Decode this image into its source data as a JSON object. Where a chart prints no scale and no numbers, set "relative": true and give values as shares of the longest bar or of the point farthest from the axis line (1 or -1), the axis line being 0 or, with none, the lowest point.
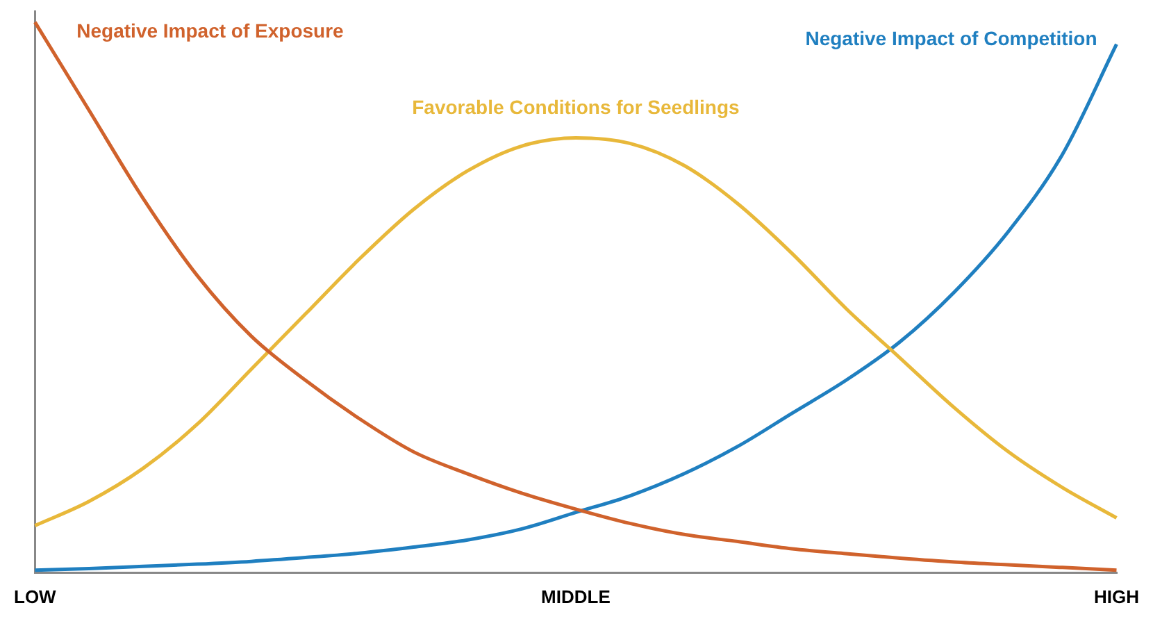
{
  "chart_data": {
    "type": "line",
    "relative": true,
    "legend": false,
    "grid": false,
    "marker": "none",
    "line_style": "solid",
    "categories": [
      "LOW",
      null,
      null,
      null,
      null,
      null,
      null,
      null,
      null,
      null,
      "MIDDLE",
      null,
      null,
      null,
      null,
      null,
      null,
      null,
      null,
      null,
      "HIGH"
    ],
    "series": [
      {
        "name": "Negative Impact of Exposure",
        "color": "#d0622c",
        "values": [
          1.0,
          0.84,
          0.68,
          0.54,
          0.43,
          0.35,
          0.28,
          0.22,
          0.18,
          0.145,
          0.116,
          0.09,
          0.07,
          0.057,
          0.044,
          0.035,
          0.027,
          0.02,
          0.015,
          0.01,
          0.005
        ]
      },
      {
        "name": "Favorable Conditions for Seedlings",
        "color": "#e8b83a",
        "values": [
          0.086,
          0.13,
          0.19,
          0.27,
          0.37,
          0.47,
          0.57,
          0.66,
          0.73,
          0.775,
          0.79,
          0.78,
          0.74,
          0.67,
          0.58,
          0.48,
          0.39,
          0.3,
          0.22,
          0.155,
          0.1
        ]
      },
      {
        "name": "Negative Impact of Competition",
        "color": "#1f7fc0",
        "values": [
          0.005,
          0.008,
          0.012,
          0.016,
          0.021,
          0.028,
          0.036,
          0.047,
          0.06,
          0.08,
          0.11,
          0.14,
          0.18,
          0.23,
          0.29,
          0.35,
          0.42,
          0.51,
          0.62,
          0.76,
          0.96
        ]
      }
    ]
  }
}
